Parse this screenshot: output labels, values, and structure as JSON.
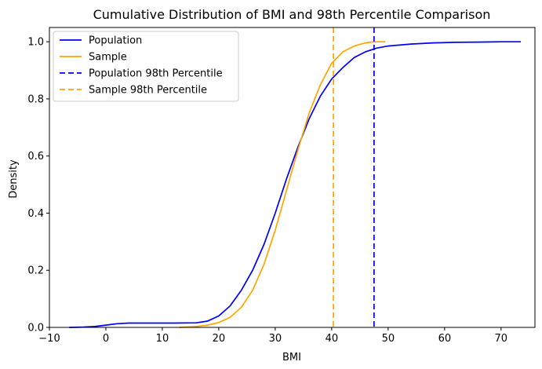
{
  "chart_data": {
    "type": "line",
    "title": "Cumulative Distribution of BMI and 98th Percentile Comparison",
    "xlabel": "BMI",
    "ylabel": "Density",
    "xlim": [
      -10,
      76
    ],
    "ylim": [
      0,
      1.05
    ],
    "xticks": [
      -10,
      0,
      10,
      20,
      30,
      40,
      50,
      60,
      70
    ],
    "yticks": [
      0.0,
      0.2,
      0.4,
      0.6,
      0.8,
      1.0
    ],
    "xtick_labels": [
      "−10",
      "0",
      "10",
      "20",
      "30",
      "40",
      "50",
      "60",
      "70"
    ],
    "ytick_labels": [
      "0.0",
      "0.2",
      "0.4",
      "0.6",
      "0.8",
      "1.0"
    ],
    "grid": false,
    "legend_position": "top-left",
    "series": [
      {
        "name": "Population",
        "color": "#0000ff",
        "style": "solid",
        "points": [
          [
            -6.5,
            0.0
          ],
          [
            -4,
            0.001
          ],
          [
            -2,
            0.003
          ],
          [
            0,
            0.008
          ],
          [
            2,
            0.013
          ],
          [
            4,
            0.015
          ],
          [
            8,
            0.015
          ],
          [
            12,
            0.015
          ],
          [
            16,
            0.016
          ],
          [
            18,
            0.022
          ],
          [
            20,
            0.04
          ],
          [
            22,
            0.075
          ],
          [
            24,
            0.13
          ],
          [
            26,
            0.2
          ],
          [
            28,
            0.29
          ],
          [
            30,
            0.4
          ],
          [
            32,
            0.52
          ],
          [
            34,
            0.63
          ],
          [
            36,
            0.73
          ],
          [
            38,
            0.81
          ],
          [
            40,
            0.87
          ],
          [
            42,
            0.91
          ],
          [
            44,
            0.945
          ],
          [
            46,
            0.965
          ],
          [
            48,
            0.978
          ],
          [
            50,
            0.985
          ],
          [
            54,
            0.992
          ],
          [
            58,
            0.996
          ],
          [
            62,
            0.998
          ],
          [
            66,
            0.999
          ],
          [
            70,
            1.0
          ],
          [
            73.5,
            1.0
          ]
        ]
      },
      {
        "name": "Sample",
        "color": "#ffa500",
        "style": "solid",
        "points": [
          [
            13,
            0.0
          ],
          [
            16,
            0.003
          ],
          [
            18,
            0.008
          ],
          [
            20,
            0.017
          ],
          [
            22,
            0.035
          ],
          [
            24,
            0.07
          ],
          [
            26,
            0.13
          ],
          [
            28,
            0.22
          ],
          [
            30,
            0.34
          ],
          [
            32,
            0.48
          ],
          [
            34,
            0.62
          ],
          [
            36,
            0.75
          ],
          [
            38,
            0.85
          ],
          [
            40,
            0.925
          ],
          [
            42,
            0.965
          ],
          [
            44,
            0.985
          ],
          [
            46,
            0.996
          ],
          [
            47,
            0.999
          ],
          [
            48,
            1.0
          ],
          [
            49.5,
            1.0
          ]
        ]
      },
      {
        "name": "Population 98th Percentile",
        "color": "#0000ff",
        "style": "dashed",
        "vline": 47.5
      },
      {
        "name": "Sample 98th Percentile",
        "color": "#ffa500",
        "style": "dashed",
        "vline": 40.3
      }
    ]
  }
}
